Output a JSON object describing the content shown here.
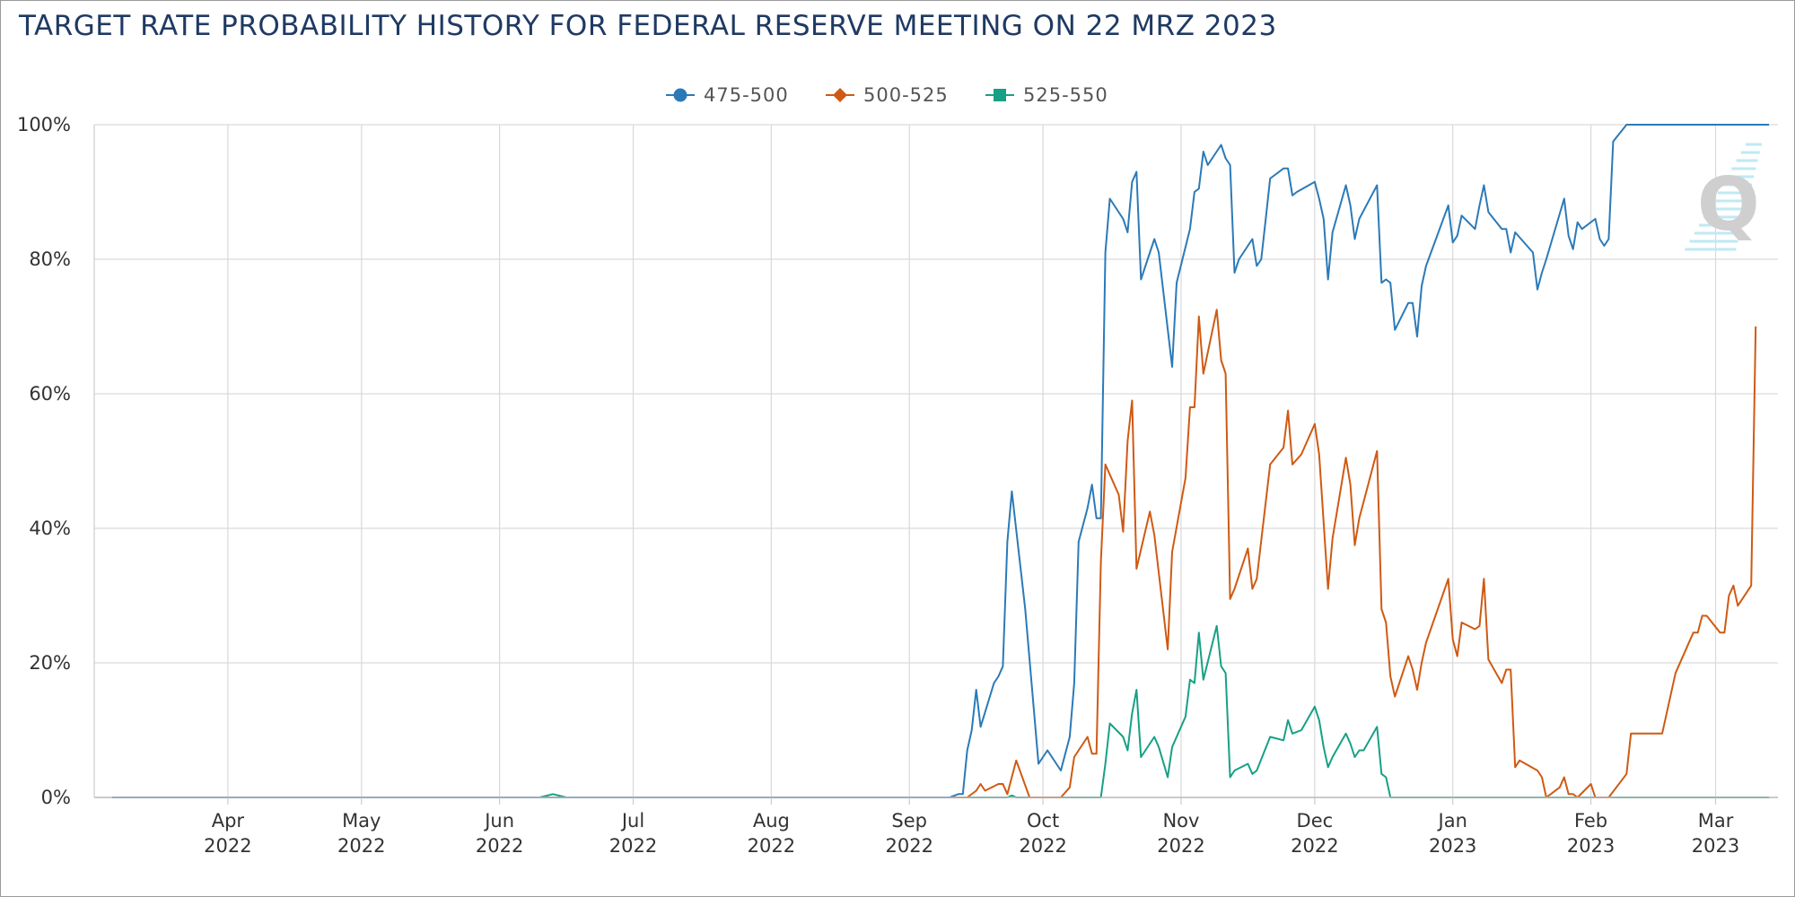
{
  "chart_data": {
    "type": "line",
    "title": "TARGET RATE PROBABILITY HISTORY FOR FEDERAL RESERVE MEETING ON 22 MRZ 2023",
    "xlabel": "",
    "ylabel": "",
    "ylim": [
      0,
      100
    ],
    "y_ticks": [
      "0%",
      "20%",
      "40%",
      "60%",
      "80%",
      "100%"
    ],
    "x_range": [
      "2022-03-02",
      "2023-03-15"
    ],
    "x_ticks": [
      {
        "date": "2022-04-01",
        "month": "Apr",
        "year": "2022"
      },
      {
        "date": "2022-05-01",
        "month": "May",
        "year": "2022"
      },
      {
        "date": "2022-06-01",
        "month": "Jun",
        "year": "2022"
      },
      {
        "date": "2022-07-01",
        "month": "Jul",
        "year": "2022"
      },
      {
        "date": "2022-08-01",
        "month": "Aug",
        "year": "2022"
      },
      {
        "date": "2022-09-01",
        "month": "Sep",
        "year": "2022"
      },
      {
        "date": "2022-10-01",
        "month": "Oct",
        "year": "2022"
      },
      {
        "date": "2022-11-01",
        "month": "Nov",
        "year": "2022"
      },
      {
        "date": "2022-12-01",
        "month": "Dec",
        "year": "2022"
      },
      {
        "date": "2023-01-01",
        "month": "Jan",
        "year": "2023"
      },
      {
        "date": "2023-02-01",
        "month": "Feb",
        "year": "2023"
      },
      {
        "date": "2023-03-01",
        "month": "Mar",
        "year": "2023"
      }
    ],
    "grid": true,
    "legend_position": "top-center",
    "series": [
      {
        "name": "475-500",
        "color": "#2b7ab8",
        "marker": "circle",
        "points": [
          [
            "2022-03-06",
            0
          ],
          [
            "2022-09-10",
            0
          ],
          [
            "2022-09-12",
            0.5
          ],
          [
            "2022-09-13",
            0.5
          ],
          [
            "2022-09-14",
            7
          ],
          [
            "2022-09-15",
            10
          ],
          [
            "2022-09-16",
            16
          ],
          [
            "2022-09-17",
            10.5
          ],
          [
            "2022-09-20",
            17
          ],
          [
            "2022-09-21",
            18
          ],
          [
            "2022-09-22",
            19.5
          ],
          [
            "2022-09-23",
            38
          ],
          [
            "2022-09-24",
            45.5
          ],
          [
            "2022-09-27",
            28
          ],
          [
            "2022-09-30",
            5
          ],
          [
            "2022-10-02",
            7
          ],
          [
            "2022-10-05",
            4
          ],
          [
            "2022-10-07",
            9
          ],
          [
            "2022-10-08",
            17
          ],
          [
            "2022-10-09",
            38
          ],
          [
            "2022-10-11",
            43
          ],
          [
            "2022-10-12",
            46.5
          ],
          [
            "2022-10-13",
            41.5
          ],
          [
            "2022-10-14",
            41.5
          ],
          [
            "2022-10-15",
            81
          ],
          [
            "2022-10-16",
            89
          ],
          [
            "2022-10-19",
            86
          ],
          [
            "2022-10-20",
            84
          ],
          [
            "2022-10-21",
            91.5
          ],
          [
            "2022-10-22",
            93
          ],
          [
            "2022-10-23",
            77
          ],
          [
            "2022-10-26",
            83
          ],
          [
            "2022-10-27",
            81
          ],
          [
            "2022-10-30",
            64
          ],
          [
            "2022-10-31",
            76.5
          ],
          [
            "2022-11-03",
            84.5
          ],
          [
            "2022-11-04",
            90
          ],
          [
            "2022-11-05",
            90.5
          ],
          [
            "2022-11-06",
            96
          ],
          [
            "2022-11-07",
            94
          ],
          [
            "2022-11-10",
            97
          ],
          [
            "2022-11-11",
            95
          ],
          [
            "2022-11-12",
            94
          ],
          [
            "2022-11-13",
            78
          ],
          [
            "2022-11-14",
            80
          ],
          [
            "2022-11-17",
            83
          ],
          [
            "2022-11-18",
            79
          ],
          [
            "2022-11-19",
            80
          ],
          [
            "2022-11-20",
            86
          ],
          [
            "2022-11-21",
            92
          ],
          [
            "2022-11-24",
            93.5
          ],
          [
            "2022-11-25",
            93.5
          ],
          [
            "2022-11-26",
            89.5
          ],
          [
            "2022-11-27",
            90
          ],
          [
            "2022-12-01",
            91.5
          ],
          [
            "2022-12-02",
            89
          ],
          [
            "2022-12-03",
            86
          ],
          [
            "2022-12-04",
            77
          ],
          [
            "2022-12-05",
            84
          ],
          [
            "2022-12-08",
            91
          ],
          [
            "2022-12-09",
            88
          ],
          [
            "2022-12-10",
            83
          ],
          [
            "2022-12-11",
            86
          ],
          [
            "2022-12-15",
            91
          ],
          [
            "2022-12-16",
            76.5
          ],
          [
            "2022-12-17",
            77
          ],
          [
            "2022-12-18",
            76.5
          ],
          [
            "2022-12-19",
            69.5
          ],
          [
            "2022-12-22",
            73.5
          ],
          [
            "2022-12-23",
            73.5
          ],
          [
            "2022-12-24",
            68.5
          ],
          [
            "2022-12-25",
            76
          ],
          [
            "2022-12-26",
            79
          ],
          [
            "2022-12-31",
            88
          ],
          [
            "2023-01-01",
            82.5
          ],
          [
            "2023-01-02",
            83.5
          ],
          [
            "2023-01-03",
            86.5
          ],
          [
            "2023-01-06",
            84.5
          ],
          [
            "2023-01-07",
            88
          ],
          [
            "2023-01-08",
            91
          ],
          [
            "2023-01-09",
            87
          ],
          [
            "2023-01-12",
            84.5
          ],
          [
            "2023-01-13",
            84.5
          ],
          [
            "2023-01-14",
            81
          ],
          [
            "2023-01-15",
            84
          ],
          [
            "2023-01-19",
            81
          ],
          [
            "2023-01-20",
            75.5
          ],
          [
            "2023-01-21",
            78
          ],
          [
            "2023-01-22",
            80
          ],
          [
            "2023-01-26",
            89
          ],
          [
            "2023-01-27",
            83.5
          ],
          [
            "2023-01-28",
            81.5
          ],
          [
            "2023-01-29",
            85.5
          ],
          [
            "2023-01-30",
            84.5
          ],
          [
            "2023-02-02",
            86
          ],
          [
            "2023-02-03",
            83
          ],
          [
            "2023-02-04",
            82
          ],
          [
            "2023-02-05",
            83
          ],
          [
            "2023-02-06",
            97.5
          ],
          [
            "2023-02-09",
            100
          ],
          [
            "2023-03-13",
            100
          ]
        ]
      },
      {
        "name": "500-525",
        "color": "#cf5a13",
        "marker": "diamond",
        "points": [
          [
            "2022-03-06",
            0
          ],
          [
            "2022-09-14",
            0
          ],
          [
            "2022-09-16",
            1
          ],
          [
            "2022-09-17",
            2
          ],
          [
            "2022-09-18",
            1
          ],
          [
            "2022-09-21",
            2
          ],
          [
            "2022-09-22",
            2
          ],
          [
            "2022-09-23",
            0.5
          ],
          [
            "2022-09-25",
            5.5
          ],
          [
            "2022-09-28",
            0
          ],
          [
            "2022-10-05",
            0
          ],
          [
            "2022-10-07",
            1.5
          ],
          [
            "2022-10-08",
            6
          ],
          [
            "2022-10-11",
            9
          ],
          [
            "2022-10-12",
            6.5
          ],
          [
            "2022-10-13",
            6.5
          ],
          [
            "2022-10-14",
            35
          ],
          [
            "2022-10-15",
            49.5
          ],
          [
            "2022-10-18",
            45
          ],
          [
            "2022-10-19",
            39.5
          ],
          [
            "2022-10-20",
            53
          ],
          [
            "2022-10-21",
            59
          ],
          [
            "2022-10-22",
            34
          ],
          [
            "2022-10-25",
            42.5
          ],
          [
            "2022-10-26",
            39
          ],
          [
            "2022-10-29",
            22
          ],
          [
            "2022-10-30",
            36.5
          ],
          [
            "2022-11-02",
            47.5
          ],
          [
            "2022-11-03",
            58
          ],
          [
            "2022-11-04",
            58
          ],
          [
            "2022-11-05",
            71.5
          ],
          [
            "2022-11-06",
            63
          ],
          [
            "2022-11-09",
            72.5
          ],
          [
            "2022-11-10",
            65
          ],
          [
            "2022-11-11",
            63
          ],
          [
            "2022-11-12",
            29.5
          ],
          [
            "2022-11-13",
            31
          ],
          [
            "2022-11-16",
            37
          ],
          [
            "2022-11-17",
            31
          ],
          [
            "2022-11-18",
            32.5
          ],
          [
            "2022-11-21",
            49.5
          ],
          [
            "2022-11-24",
            52
          ],
          [
            "2022-11-25",
            57.5
          ],
          [
            "2022-11-26",
            49.5
          ],
          [
            "2022-11-28",
            51
          ],
          [
            "2022-12-01",
            55.5
          ],
          [
            "2022-12-02",
            51
          ],
          [
            "2022-12-04",
            31
          ],
          [
            "2022-12-05",
            38.5
          ],
          [
            "2022-12-08",
            50.5
          ],
          [
            "2022-12-09",
            46.5
          ],
          [
            "2022-12-10",
            37.5
          ],
          [
            "2022-12-11",
            41.5
          ],
          [
            "2022-12-15",
            51.5
          ],
          [
            "2022-12-16",
            28
          ],
          [
            "2022-12-17",
            26
          ],
          [
            "2022-12-18",
            18
          ],
          [
            "2022-12-19",
            15
          ],
          [
            "2022-12-22",
            21
          ],
          [
            "2022-12-23",
            19
          ],
          [
            "2022-12-24",
            16
          ],
          [
            "2022-12-25",
            20
          ],
          [
            "2022-12-26",
            23
          ],
          [
            "2022-12-31",
            32.5
          ],
          [
            "2023-01-01",
            23.5
          ],
          [
            "2023-01-02",
            21
          ],
          [
            "2023-01-03",
            26
          ],
          [
            "2023-01-06",
            25
          ],
          [
            "2023-01-07",
            25.5
          ],
          [
            "2023-01-08",
            32.5
          ],
          [
            "2023-01-09",
            20.5
          ],
          [
            "2023-01-12",
            17
          ],
          [
            "2023-01-13",
            19
          ],
          [
            "2023-01-14",
            19
          ],
          [
            "2023-01-15",
            4.5
          ],
          [
            "2023-01-16",
            5.5
          ],
          [
            "2023-01-20",
            4
          ],
          [
            "2023-01-21",
            3
          ],
          [
            "2023-01-22",
            0
          ],
          [
            "2023-01-25",
            1.5
          ],
          [
            "2023-01-26",
            3
          ],
          [
            "2023-01-27",
            0.5
          ],
          [
            "2023-01-28",
            0.5
          ],
          [
            "2023-01-29",
            0
          ],
          [
            "2023-02-01",
            2
          ],
          [
            "2023-02-02",
            0
          ],
          [
            "2023-02-05",
            0
          ],
          [
            "2023-02-09",
            3.5
          ],
          [
            "2023-02-10",
            9.5
          ],
          [
            "2023-02-17",
            9.5
          ],
          [
            "2023-02-20",
            18.5
          ],
          [
            "2023-02-24",
            24.5
          ],
          [
            "2023-02-25",
            24.5
          ],
          [
            "2023-02-26",
            27
          ],
          [
            "2023-02-27",
            27
          ],
          [
            "2023-03-02",
            24.5
          ],
          [
            "2023-03-03",
            24.5
          ],
          [
            "2023-03-04",
            30
          ],
          [
            "2023-03-05",
            31.5
          ],
          [
            "2023-03-06",
            28.5
          ],
          [
            "2023-03-09",
            31.5
          ],
          [
            "2023-03-10",
            70
          ]
        ]
      },
      {
        "name": "525-550",
        "color": "#18a085",
        "marker": "square",
        "points": [
          [
            "2022-03-06",
            0
          ],
          [
            "2022-06-10",
            0
          ],
          [
            "2022-06-13",
            0.5
          ],
          [
            "2022-06-16",
            0
          ],
          [
            "2022-09-23",
            0
          ],
          [
            "2022-09-24",
            0.3
          ],
          [
            "2022-09-25",
            0
          ],
          [
            "2022-10-14",
            0
          ],
          [
            "2022-10-15",
            5
          ],
          [
            "2022-10-16",
            11
          ],
          [
            "2022-10-19",
            9
          ],
          [
            "2022-10-20",
            7
          ],
          [
            "2022-10-21",
            12.5
          ],
          [
            "2022-10-22",
            16
          ],
          [
            "2022-10-23",
            6
          ],
          [
            "2022-10-26",
            9
          ],
          [
            "2022-10-27",
            7.5
          ],
          [
            "2022-10-29",
            3
          ],
          [
            "2022-10-30",
            7.5
          ],
          [
            "2022-11-02",
            12
          ],
          [
            "2022-11-03",
            17.5
          ],
          [
            "2022-11-04",
            17
          ],
          [
            "2022-11-05",
            24.5
          ],
          [
            "2022-11-06",
            17.5
          ],
          [
            "2022-11-09",
            25.5
          ],
          [
            "2022-11-10",
            19.5
          ],
          [
            "2022-11-11",
            18.5
          ],
          [
            "2022-11-12",
            3
          ],
          [
            "2022-11-13",
            4
          ],
          [
            "2022-11-16",
            5
          ],
          [
            "2022-11-17",
            3.5
          ],
          [
            "2022-11-18",
            4
          ],
          [
            "2022-11-21",
            9
          ],
          [
            "2022-11-24",
            8.5
          ],
          [
            "2022-11-25",
            11.5
          ],
          [
            "2022-11-26",
            9.5
          ],
          [
            "2022-11-28",
            10
          ],
          [
            "2022-12-01",
            13.5
          ],
          [
            "2022-12-02",
            11.5
          ],
          [
            "2022-12-03",
            7.5
          ],
          [
            "2022-12-04",
            4.5
          ],
          [
            "2022-12-05",
            6
          ],
          [
            "2022-12-08",
            9.5
          ],
          [
            "2022-12-09",
            8
          ],
          [
            "2022-12-10",
            6
          ],
          [
            "2022-12-11",
            7
          ],
          [
            "2022-12-12",
            7
          ],
          [
            "2022-12-15",
            10.5
          ],
          [
            "2022-12-16",
            3.5
          ],
          [
            "2022-12-17",
            3
          ],
          [
            "2022-12-18",
            0
          ],
          [
            "2023-03-13",
            0
          ]
        ]
      }
    ]
  }
}
